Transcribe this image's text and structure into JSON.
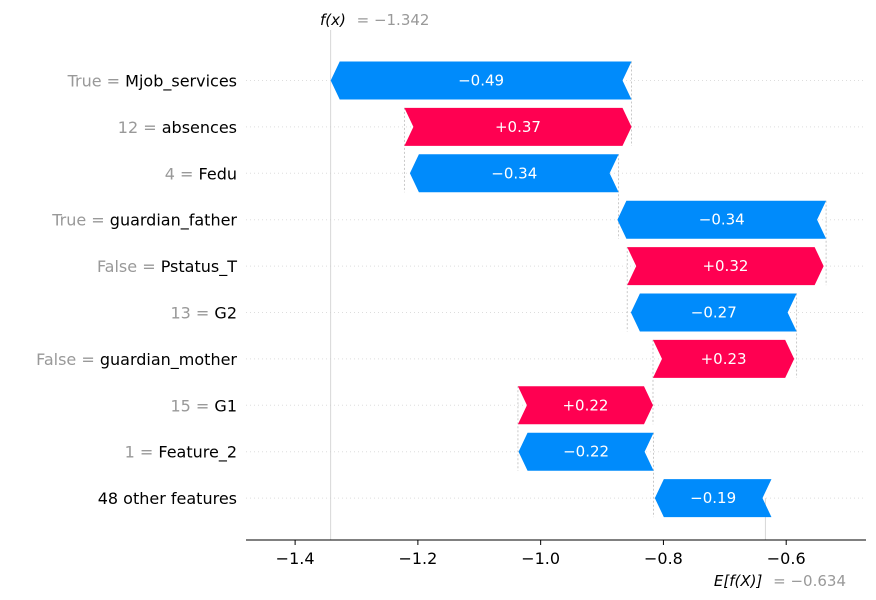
{
  "chart_data": {
    "type": "waterfall",
    "xlim": [
      -1.48,
      -0.47
    ],
    "xticks": [
      -1.4,
      -1.2,
      -1.0,
      -0.8,
      -0.6
    ],
    "xtick_labels": [
      "−1.4",
      "−1.2",
      "−1.0",
      "−0.8",
      "−0.6"
    ],
    "grid": "horizontal dotted guides per row",
    "colors": {
      "positive": "#ff0051",
      "negative": "#008bfb"
    },
    "fx": {
      "name": "f(x)",
      "value": -1.342,
      "text": "= −1.342"
    },
    "efx": {
      "name": "E[f(X)]",
      "value": -0.634,
      "text": "= −0.634"
    },
    "features": [
      {
        "value_text": "True = ",
        "name": "Mjob_services",
        "contribution": -0.49,
        "label": "−0.49",
        "start": -0.852,
        "end": -1.342
      },
      {
        "value_text": "12 = ",
        "name": "absences",
        "contribution": 0.37,
        "label": "+0.37",
        "start": -1.222,
        "end": -0.852
      },
      {
        "value_text": "4 = ",
        "name": "Fedu",
        "contribution": -0.34,
        "label": "−0.34",
        "start": -0.873,
        "end": -1.213
      },
      {
        "value_text": "True = ",
        "name": "guardian_father",
        "contribution": -0.34,
        "label": "−0.34",
        "start": -0.535,
        "end": -0.875
      },
      {
        "value_text": "False = ",
        "name": "Pstatus_T",
        "contribution": 0.32,
        "label": "+0.32",
        "start": -0.859,
        "end": -0.539
      },
      {
        "value_text": "13 = ",
        "name": "G2",
        "contribution": -0.27,
        "label": "−0.27",
        "start": -0.583,
        "end": -0.853
      },
      {
        "value_text": "False = ",
        "name": "guardian_mother",
        "contribution": 0.23,
        "label": "+0.23",
        "start": -0.817,
        "end": -0.587
      },
      {
        "value_text": "15 = ",
        "name": "G1",
        "contribution": 0.22,
        "label": "+0.22",
        "start": -1.037,
        "end": -0.817
      },
      {
        "value_text": "1 = ",
        "name": "Feature_2",
        "contribution": -0.22,
        "label": "−0.22",
        "start": -0.816,
        "end": -1.036
      },
      {
        "value_text": "",
        "name": "48 other features",
        "contribution": -0.19,
        "label": "−0.19",
        "start": -0.624,
        "end": -0.814
      }
    ]
  }
}
